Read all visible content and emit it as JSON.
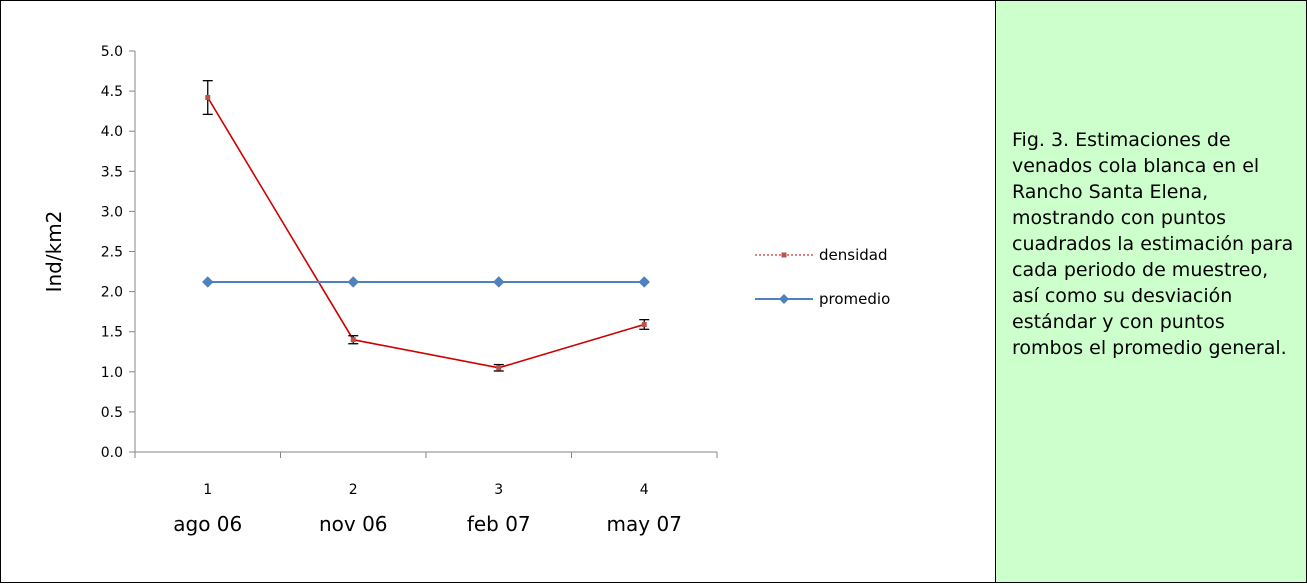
{
  "chart_data": {
    "type": "line",
    "ylabel": "Ind/km2",
    "ylim": [
      0.0,
      5.0
    ],
    "y_ticks": [
      "0.0",
      "0.5",
      "1.0",
      "1.5",
      "2.0",
      "2.5",
      "3.0",
      "3.5",
      "4.0",
      "4.5",
      "5.0"
    ],
    "categories": [
      "1",
      "2",
      "3",
      "4"
    ],
    "category_sublabels": [
      "ago 06",
      "nov 06",
      "feb 07",
      "may 07"
    ],
    "grid": false,
    "legend_position": "right",
    "series": [
      {
        "name": "densidad",
        "marker": "square",
        "color": "#cc0000",
        "values": [
          4.42,
          1.4,
          1.05,
          1.59
        ],
        "error": [
          0.21,
          0.05,
          0.04,
          0.06
        ]
      },
      {
        "name": "promedio",
        "marker": "diamond",
        "color": "#4f81bd",
        "values": [
          2.12,
          2.12,
          2.12,
          2.12
        ]
      }
    ]
  },
  "caption": "Fig. 3. Estimaciones de venados cola blanca en el Rancho Santa Elena, mostrando con puntos cuadrados la estimación para cada periodo de muestreo, así como su desviación estándar y con puntos rombos el promedio general.",
  "colors": {
    "caption_background": "#ccffcc",
    "border": "#000000"
  }
}
